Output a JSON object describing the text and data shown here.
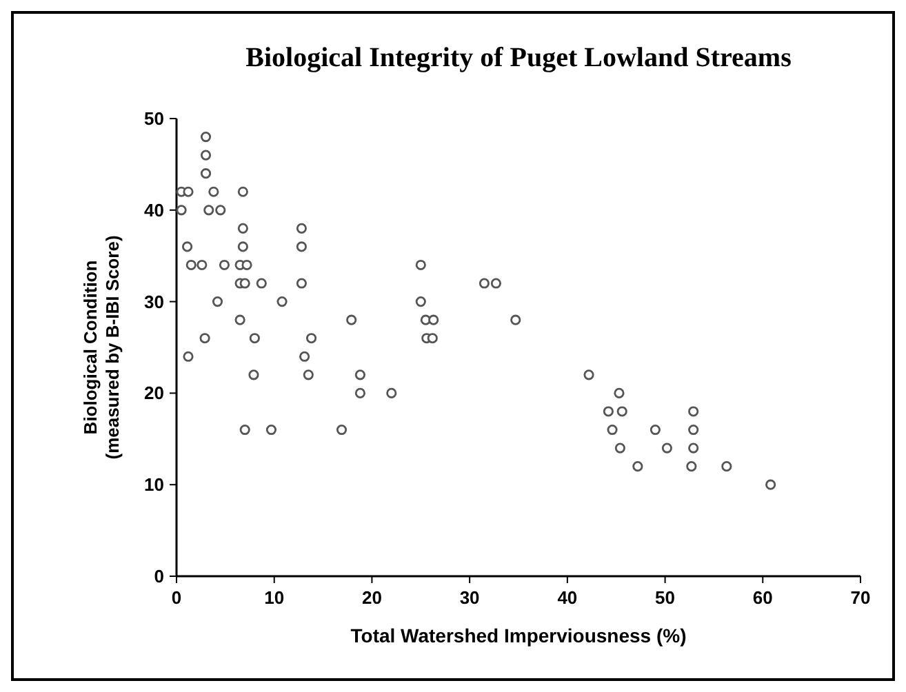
{
  "chart_data": {
    "type": "scatter",
    "title": "Biological Integrity of Puget Lowland Streams",
    "xlabel": "Total Watershed Imperviousness (%)",
    "ylabel": "Biological Condition\n(measured by B-IBI Score)",
    "xlim": [
      0,
      70
    ],
    "ylim": [
      0,
      50
    ],
    "xticks": [
      0,
      10,
      20,
      30,
      40,
      50,
      60,
      70
    ],
    "yticks": [
      0,
      10,
      20,
      30,
      40,
      50
    ],
    "marker": "circle",
    "grid": false,
    "x": [
      0.5,
      1.2,
      3.8,
      6.8,
      3,
      3,
      3,
      0.5,
      3.3,
      4.5,
      1.1,
      1.5,
      2.6,
      4.9,
      6.5,
      7.2,
      6.5,
      7,
      8.7,
      4.2,
      6.5,
      2.9,
      1.2,
      7.9,
      8,
      7,
      9.7,
      10.8,
      12.8,
      12.8,
      12.8,
      13.8,
      13.1,
      13.5,
      17.9,
      18.8,
      18.8,
      16.9,
      25,
      31.5,
      32.7,
      25,
      25.5,
      26.3,
      25.6,
      26.2,
      34.7,
      22,
      42.2,
      45.3,
      44.2,
      45.6,
      52.9,
      44.6,
      49,
      52.9,
      45.4,
      50.2,
      52.9,
      47.2,
      52.7,
      56.3,
      60.8,
      6.8,
      6.8
    ],
    "values": [
      42,
      42,
      42,
      42,
      48,
      46,
      44,
      40,
      40,
      40,
      36,
      34,
      34,
      34,
      34,
      34,
      32,
      32,
      32,
      30,
      28,
      26,
      24,
      22,
      26,
      16,
      16,
      30,
      38,
      36,
      32,
      26,
      24,
      22,
      28,
      22,
      20,
      16,
      34,
      32,
      32,
      30,
      28,
      28,
      26,
      26,
      28,
      20,
      22,
      20,
      18,
      18,
      18,
      16,
      16,
      16,
      14,
      14,
      14,
      12,
      12,
      12,
      10,
      38,
      36
    ],
    "color": "#ffffff"
  }
}
